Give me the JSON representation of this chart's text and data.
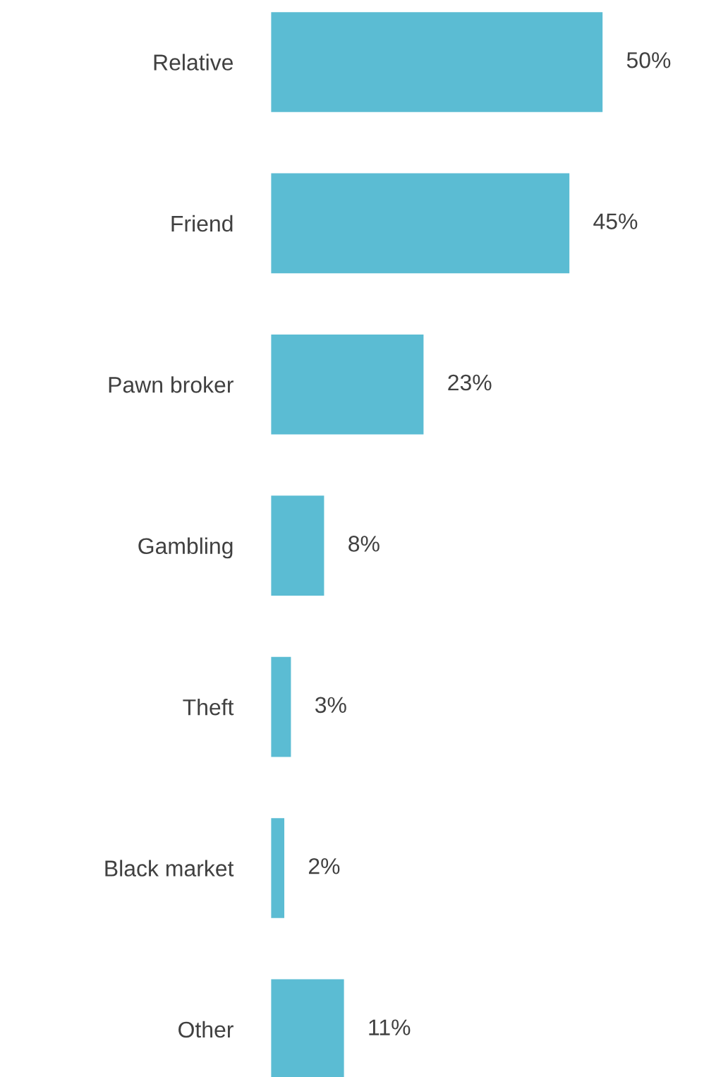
{
  "chart_data": {
    "type": "bar",
    "orientation": "horizontal",
    "categories": [
      "Relative",
      "Friend",
      "Pawn broker",
      "Gambling",
      "Theft",
      "Black market",
      "Other"
    ],
    "values": [
      50,
      45,
      23,
      8,
      3,
      2,
      11
    ],
    "value_labels": [
      "50%",
      "45%",
      "23%",
      "8%",
      "3%",
      "2%",
      "11%"
    ],
    "color": "#5bbcd3",
    "grid": false,
    "legend": false
  }
}
